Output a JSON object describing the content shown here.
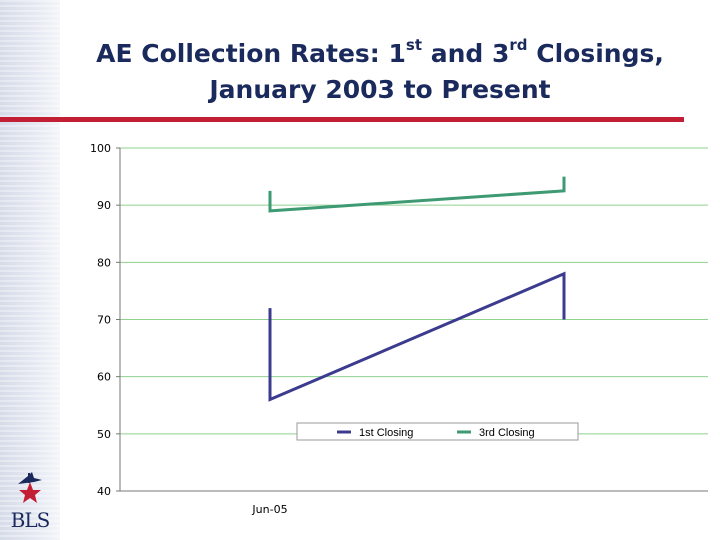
{
  "slide": {
    "title_part1": "AE Collection Rates: 1",
    "title_sup1": "st",
    "title_part2": " and 3",
    "title_sup2": "rd",
    "title_part3": " Closings,",
    "title_line2": "January 2003 to Present",
    "logo_text": "BLS",
    "rule_color": "#c21f35",
    "title_color": "#1b2a5c"
  },
  "chart_data": {
    "type": "line",
    "categories": [
      "Jun-05"
    ],
    "ylim": [
      40,
      100
    ],
    "yticks": [
      100,
      90,
      80,
      70,
      60,
      50,
      40
    ],
    "grid": true,
    "legend_position": "bottom-right",
    "series": [
      {
        "name": "1st Closing",
        "color": "#3b3b8f",
        "points": [
          {
            "x": 0,
            "y": 72
          },
          {
            "x": 0,
            "y": 56
          },
          {
            "x": 1,
            "y": 78
          },
          {
            "x": 1,
            "y": 70
          }
        ]
      },
      {
        "name": "3rd Closing",
        "color": "#3d9a72",
        "points": [
          {
            "x": 0,
            "y": 92.5
          },
          {
            "x": 0,
            "y": 89
          },
          {
            "x": 1,
            "y": 92.5
          },
          {
            "x": 1,
            "y": 95
          }
        ]
      }
    ]
  }
}
